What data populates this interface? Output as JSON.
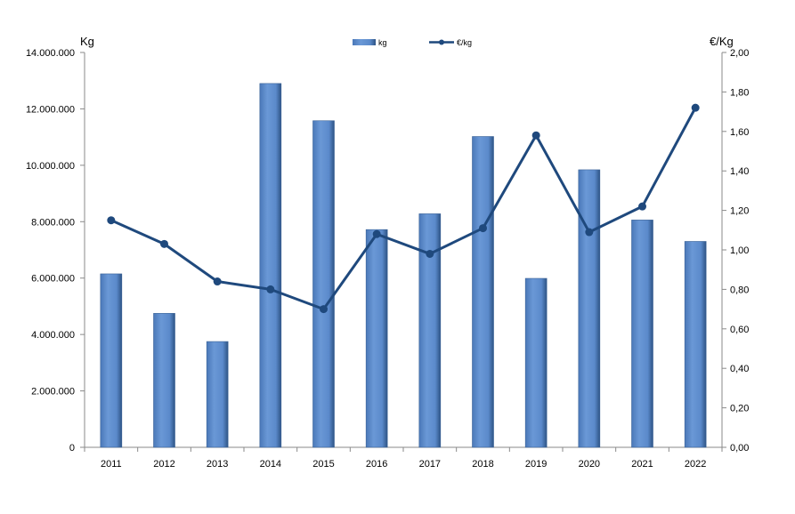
{
  "chart_data": {
    "type": "bar+line",
    "categories": [
      "2011",
      "2012",
      "2013",
      "2014",
      "2015",
      "2016",
      "2017",
      "2018",
      "2019",
      "2020",
      "2021",
      "2022"
    ],
    "series": [
      {
        "name": "kg",
        "type": "bar",
        "axis": "left",
        "color": "#5B8ACB",
        "values": [
          6150000,
          4750000,
          3750000,
          12900000,
          11580000,
          7720000,
          8280000,
          11020000,
          5990000,
          9840000,
          8060000,
          7300000
        ]
      },
      {
        "name": "€/kg",
        "type": "line",
        "axis": "right",
        "color": "#1F497D",
        "values": [
          1.15,
          1.03,
          0.84,
          0.8,
          0.7,
          1.08,
          0.98,
          1.11,
          1.58,
          1.09,
          1.22,
          1.72
        ]
      }
    ],
    "ylabel_left": "Kg",
    "ylabel_right": "€/Kg",
    "ylim_left": [
      0,
      14000000
    ],
    "ylim_right": [
      0,
      2.0
    ],
    "yticks_left": [
      "0",
      "2.000.000",
      "4.000.000",
      "6.000.000",
      "8.000.000",
      "10.000.000",
      "12.000.000",
      "14.000.000"
    ],
    "yticks_right": [
      "0,00",
      "0,20",
      "0,40",
      "0,60",
      "0,80",
      "1,00",
      "1,20",
      "1,40",
      "1,60",
      "1,80",
      "2,00"
    ],
    "legend_position": "top-center",
    "grid": false
  }
}
